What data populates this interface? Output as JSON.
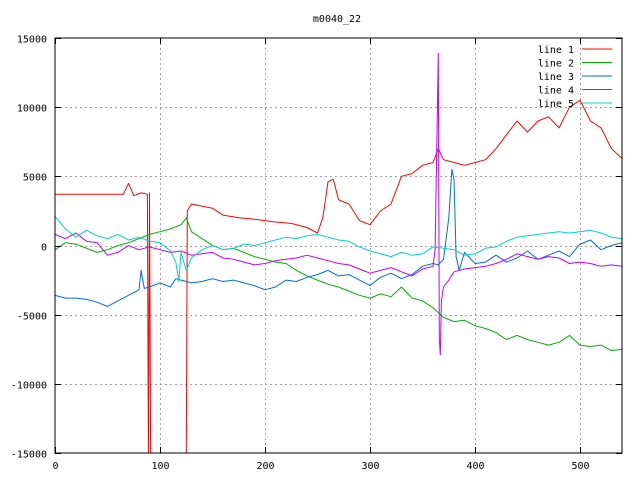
{
  "chart_data": {
    "type": "line",
    "title": "m0040_22",
    "xlabel": "",
    "ylabel": "",
    "xlim": [
      0,
      540
    ],
    "ylim": [
      -15000,
      15000
    ],
    "x_ticks": [
      0,
      100,
      200,
      300,
      400,
      500
    ],
    "y_ticks": [
      -15000,
      -10000,
      -5000,
      0,
      5000,
      10000,
      15000
    ],
    "grid": true,
    "legend_position": "top-right",
    "series": [
      {
        "name": "line 1",
        "color": "#ff0000",
        "points": [
          [
            0,
            3700
          ],
          [
            65,
            3700
          ],
          [
            70,
            4500
          ],
          [
            75,
            3600
          ],
          [
            82,
            3800
          ],
          [
            88,
            3700
          ],
          [
            89,
            -15000
          ],
          [
            90,
            3800
          ],
          [
            91,
            -15000
          ],
          [
            125,
            -15000
          ],
          [
            126,
            2500
          ],
          [
            130,
            3000
          ],
          [
            150,
            2700
          ],
          [
            160,
            2200
          ],
          [
            175,
            2000
          ],
          [
            190,
            1900
          ],
          [
            210,
            1700
          ],
          [
            225,
            1600
          ],
          [
            240,
            1300
          ],
          [
            250,
            900
          ],
          [
            255,
            2000
          ],
          [
            260,
            4600
          ],
          [
            265,
            4800
          ],
          [
            270,
            3300
          ],
          [
            280,
            3000
          ],
          [
            290,
            1800
          ],
          [
            300,
            1500
          ],
          [
            310,
            2500
          ],
          [
            320,
            3000
          ],
          [
            330,
            5000
          ],
          [
            340,
            5200
          ],
          [
            350,
            5800
          ],
          [
            360,
            6000
          ],
          [
            365,
            7000
          ],
          [
            370,
            6200
          ],
          [
            380,
            6000
          ],
          [
            390,
            5800
          ],
          [
            400,
            6000
          ],
          [
            410,
            6200
          ],
          [
            420,
            7000
          ],
          [
            430,
            8000
          ],
          [
            440,
            9000
          ],
          [
            450,
            8200
          ],
          [
            460,
            9000
          ],
          [
            470,
            9300
          ],
          [
            480,
            8500
          ],
          [
            490,
            10000
          ],
          [
            500,
            10500
          ],
          [
            510,
            9000
          ],
          [
            520,
            8500
          ],
          [
            530,
            7000
          ],
          [
            540,
            6300
          ]
        ]
      },
      {
        "name": "line 2",
        "color": "#00b000",
        "points": [
          [
            0,
            -300
          ],
          [
            10,
            200
          ],
          [
            20,
            100
          ],
          [
            30,
            -200
          ],
          [
            40,
            -500
          ],
          [
            50,
            -300
          ],
          [
            60,
            0
          ],
          [
            70,
            200
          ],
          [
            80,
            500
          ],
          [
            90,
            800
          ],
          [
            100,
            1000
          ],
          [
            110,
            1200
          ],
          [
            120,
            1500
          ],
          [
            125,
            2000
          ],
          [
            130,
            1000
          ],
          [
            140,
            500
          ],
          [
            150,
            0
          ],
          [
            160,
            -300
          ],
          [
            170,
            -200
          ],
          [
            180,
            -500
          ],
          [
            190,
            -800
          ],
          [
            200,
            -1000
          ],
          [
            210,
            -1200
          ],
          [
            220,
            -1300
          ],
          [
            230,
            -1800
          ],
          [
            240,
            -2200
          ],
          [
            250,
            -2500
          ],
          [
            260,
            -2800
          ],
          [
            270,
            -3000
          ],
          [
            280,
            -3300
          ],
          [
            290,
            -3600
          ],
          [
            300,
            -3800
          ],
          [
            310,
            -3500
          ],
          [
            320,
            -3700
          ],
          [
            330,
            -3000
          ],
          [
            340,
            -3800
          ],
          [
            350,
            -4000
          ],
          [
            360,
            -4500
          ],
          [
            370,
            -5200
          ],
          [
            380,
            -5500
          ],
          [
            390,
            -5400
          ],
          [
            400,
            -5800
          ],
          [
            410,
            -6000
          ],
          [
            420,
            -6300
          ],
          [
            430,
            -6800
          ],
          [
            440,
            -6500
          ],
          [
            450,
            -6800
          ],
          [
            460,
            -7000
          ],
          [
            470,
            -7200
          ],
          [
            480,
            -7000
          ],
          [
            490,
            -6500
          ],
          [
            500,
            -7200
          ],
          [
            510,
            -7300
          ],
          [
            520,
            -7200
          ],
          [
            530,
            -7600
          ],
          [
            540,
            -7500
          ]
        ]
      },
      {
        "name": "line 3",
        "color": "#0070d0",
        "points": [
          [
            0,
            -3600
          ],
          [
            10,
            -3800
          ],
          [
            20,
            -3800
          ],
          [
            30,
            -3900
          ],
          [
            40,
            -4100
          ],
          [
            50,
            -4400
          ],
          [
            60,
            -4000
          ],
          [
            70,
            -3600
          ],
          [
            80,
            -3200
          ],
          [
            82,
            -1800
          ],
          [
            85,
            -3100
          ],
          [
            90,
            -3000
          ],
          [
            100,
            -2700
          ],
          [
            110,
            -3000
          ],
          [
            115,
            -2400
          ],
          [
            120,
            -2500
          ],
          [
            130,
            -2700
          ],
          [
            140,
            -2600
          ],
          [
            150,
            -2400
          ],
          [
            160,
            -2600
          ],
          [
            170,
            -2500
          ],
          [
            180,
            -2700
          ],
          [
            190,
            -2900
          ],
          [
            200,
            -3200
          ],
          [
            210,
            -3000
          ],
          [
            220,
            -2500
          ],
          [
            230,
            -2600
          ],
          [
            240,
            -2300
          ],
          [
            250,
            -2100
          ],
          [
            260,
            -1800
          ],
          [
            270,
            -2200
          ],
          [
            280,
            -2100
          ],
          [
            290,
            -2500
          ],
          [
            300,
            -2900
          ],
          [
            310,
            -2300
          ],
          [
            320,
            -2000
          ],
          [
            330,
            -2400
          ],
          [
            340,
            -2100
          ],
          [
            350,
            -1500
          ],
          [
            360,
            -1300
          ],
          [
            365,
            -1400
          ],
          [
            370,
            -1000
          ],
          [
            375,
            2000
          ],
          [
            378,
            5500
          ],
          [
            380,
            4800
          ],
          [
            382,
            -800
          ],
          [
            385,
            -1800
          ],
          [
            390,
            -500
          ],
          [
            400,
            -1300
          ],
          [
            410,
            -1200
          ],
          [
            420,
            -700
          ],
          [
            430,
            -1200
          ],
          [
            440,
            -900
          ],
          [
            450,
            -400
          ],
          [
            460,
            -1000
          ],
          [
            470,
            -700
          ],
          [
            480,
            -400
          ],
          [
            490,
            -800
          ],
          [
            500,
            100
          ],
          [
            510,
            400
          ],
          [
            520,
            -300
          ],
          [
            530,
            0
          ],
          [
            540,
            200
          ]
        ]
      },
      {
        "name": "line 4",
        "color": "#c000ff",
        "points": [
          [
            0,
            800
          ],
          [
            10,
            500
          ],
          [
            20,
            900
          ],
          [
            30,
            300
          ],
          [
            40,
            200
          ],
          [
            50,
            -700
          ],
          [
            60,
            -500
          ],
          [
            70,
            0
          ],
          [
            80,
            -300
          ],
          [
            90,
            -100
          ],
          [
            100,
            -300
          ],
          [
            110,
            -500
          ],
          [
            120,
            -400
          ],
          [
            130,
            -700
          ],
          [
            140,
            -600
          ],
          [
            150,
            -500
          ],
          [
            160,
            -900
          ],
          [
            170,
            -1000
          ],
          [
            180,
            -1200
          ],
          [
            190,
            -1400
          ],
          [
            200,
            -1300
          ],
          [
            210,
            -1100
          ],
          [
            220,
            -1000
          ],
          [
            230,
            -900
          ],
          [
            240,
            -700
          ],
          [
            250,
            -900
          ],
          [
            260,
            -1100
          ],
          [
            270,
            -1300
          ],
          [
            280,
            -1400
          ],
          [
            290,
            -1700
          ],
          [
            300,
            -2000
          ],
          [
            310,
            -1800
          ],
          [
            320,
            -1600
          ],
          [
            330,
            -1900
          ],
          [
            340,
            -2200
          ],
          [
            350,
            -1700
          ],
          [
            360,
            -1500
          ],
          [
            362,
            -300
          ],
          [
            365,
            13900
          ],
          [
            366,
            -6800
          ],
          [
            367,
            -7900
          ],
          [
            368,
            -4000
          ],
          [
            370,
            -3000
          ],
          [
            375,
            -2500
          ],
          [
            380,
            -1900
          ],
          [
            390,
            -1700
          ],
          [
            400,
            -1600
          ],
          [
            410,
            -1500
          ],
          [
            420,
            -1300
          ],
          [
            430,
            -1000
          ],
          [
            440,
            -600
          ],
          [
            450,
            -800
          ],
          [
            460,
            -1000
          ],
          [
            470,
            -800
          ],
          [
            480,
            -900
          ],
          [
            490,
            -1300
          ],
          [
            500,
            -1200
          ],
          [
            510,
            -1300
          ],
          [
            520,
            -1500
          ],
          [
            530,
            -1400
          ],
          [
            540,
            -1500
          ]
        ]
      },
      {
        "name": "line 5",
        "color": "#00d0d0",
        "points": [
          [
            0,
            2100
          ],
          [
            10,
            1200
          ],
          [
            20,
            600
          ],
          [
            30,
            1100
          ],
          [
            40,
            700
          ],
          [
            50,
            500
          ],
          [
            60,
            800
          ],
          [
            70,
            400
          ],
          [
            80,
            600
          ],
          [
            90,
            300
          ],
          [
            100,
            200
          ],
          [
            110,
            -400
          ],
          [
            115,
            -1200
          ],
          [
            118,
            -2600
          ],
          [
            120,
            -500
          ],
          [
            125,
            -1800
          ],
          [
            130,
            -900
          ],
          [
            140,
            -300
          ],
          [
            150,
            0
          ],
          [
            160,
            -300
          ],
          [
            170,
            -200
          ],
          [
            180,
            100
          ],
          [
            190,
            0
          ],
          [
            200,
            200
          ],
          [
            210,
            400
          ],
          [
            220,
            600
          ],
          [
            230,
            500
          ],
          [
            240,
            700
          ],
          [
            250,
            800
          ],
          [
            260,
            600
          ],
          [
            270,
            400
          ],
          [
            280,
            300
          ],
          [
            290,
            -100
          ],
          [
            300,
            -400
          ],
          [
            310,
            -600
          ],
          [
            320,
            -800
          ],
          [
            330,
            -500
          ],
          [
            340,
            -700
          ],
          [
            350,
            -600
          ],
          [
            360,
            -100
          ],
          [
            370,
            -200
          ],
          [
            380,
            -300
          ],
          [
            390,
            -700
          ],
          [
            400,
            -600
          ],
          [
            410,
            -200
          ],
          [
            420,
            -100
          ],
          [
            430,
            300
          ],
          [
            440,
            600
          ],
          [
            450,
            700
          ],
          [
            460,
            800
          ],
          [
            470,
            900
          ],
          [
            480,
            1000
          ],
          [
            490,
            900
          ],
          [
            500,
            1000
          ],
          [
            510,
            1100
          ],
          [
            520,
            900
          ],
          [
            530,
            600
          ],
          [
            540,
            500
          ]
        ]
      }
    ]
  }
}
